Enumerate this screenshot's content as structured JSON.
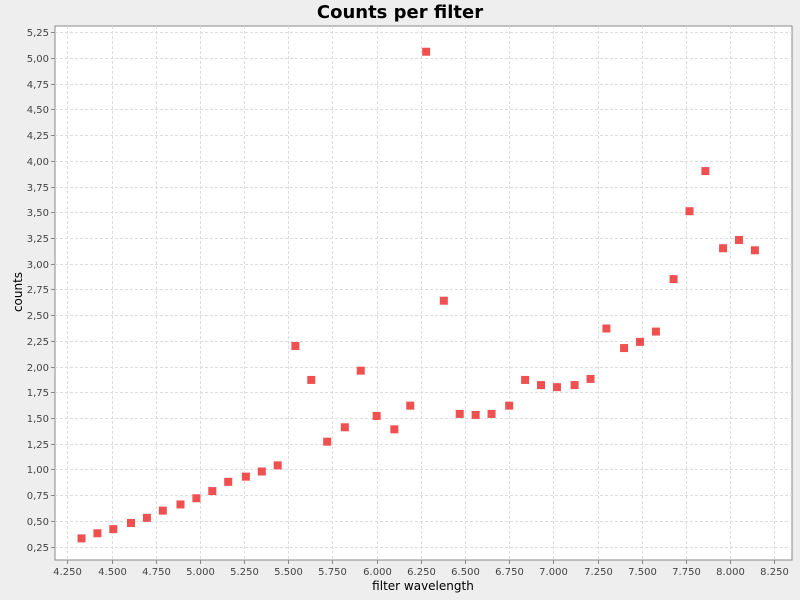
{
  "chart_data": {
    "type": "scatter",
    "title": "Counts per filter",
    "xlabel": "filter wavelength",
    "ylabel": "counts",
    "xlim": [
      4.18,
      8.35
    ],
    "ylim": [
      0.12,
      5.31
    ],
    "x_ticks": [
      4.25,
      4.5,
      4.75,
      5.0,
      5.25,
      5.5,
      5.75,
      6.0,
      6.25,
      6.5,
      6.75,
      7.0,
      7.25,
      7.5,
      7.75,
      8.0,
      8.25
    ],
    "x_tick_labels": [
      "4.250",
      "4.500",
      "4.750",
      "5.000",
      "5.250",
      "5.500",
      "5.750",
      "6.000",
      "6.250",
      "6.500",
      "6.750",
      "7.000",
      "7.250",
      "7.500",
      "7.750",
      "8.000",
      "8.250"
    ],
    "y_ticks": [
      0.25,
      0.5,
      0.75,
      1.0,
      1.25,
      1.5,
      1.75,
      2.0,
      2.25,
      2.5,
      2.75,
      3.0,
      3.25,
      3.5,
      3.75,
      4.0,
      4.25,
      4.5,
      4.75,
      5.0,
      5.25
    ],
    "y_tick_labels": [
      "0,25",
      "0,50",
      "0,75",
      "1,00",
      "1,25",
      "1,50",
      "1,75",
      "2,00",
      "2,25",
      "2,50",
      "2,75",
      "3,00",
      "3,25",
      "3,50",
      "3,75",
      "4,00",
      "4,25",
      "4,50",
      "4,75",
      "5,00",
      "5,25"
    ],
    "grid": true,
    "legend": "none",
    "marker": "square",
    "series": [
      {
        "color": "#f05050",
        "points": [
          [
            4.33,
            0.33
          ],
          [
            4.42,
            0.38
          ],
          [
            4.51,
            0.42
          ],
          [
            4.61,
            0.48
          ],
          [
            4.7,
            0.53
          ],
          [
            4.79,
            0.6
          ],
          [
            4.89,
            0.66
          ],
          [
            4.98,
            0.72
          ],
          [
            5.07,
            0.79
          ],
          [
            5.16,
            0.88
          ],
          [
            5.26,
            0.93
          ],
          [
            5.35,
            0.98
          ],
          [
            5.44,
            1.04
          ],
          [
            5.54,
            2.2
          ],
          [
            5.63,
            1.87
          ],
          [
            5.72,
            1.27
          ],
          [
            5.82,
            1.41
          ],
          [
            5.91,
            1.96
          ],
          [
            6.0,
            1.52
          ],
          [
            6.1,
            1.39
          ],
          [
            6.19,
            1.62
          ],
          [
            6.28,
            5.06
          ],
          [
            6.38,
            2.64
          ],
          [
            6.47,
            1.54
          ],
          [
            6.56,
            1.53
          ],
          [
            6.65,
            1.54
          ],
          [
            6.75,
            1.62
          ],
          [
            6.84,
            1.87
          ],
          [
            6.93,
            1.82
          ],
          [
            7.02,
            1.8
          ],
          [
            7.12,
            1.82
          ],
          [
            7.21,
            1.88
          ],
          [
            7.3,
            2.37
          ],
          [
            7.4,
            2.18
          ],
          [
            7.49,
            2.24
          ],
          [
            7.58,
            2.34
          ],
          [
            7.68,
            2.85
          ],
          [
            7.77,
            3.51
          ],
          [
            7.86,
            3.9
          ],
          [
            7.96,
            3.15
          ],
          [
            8.05,
            3.23
          ],
          [
            8.14,
            3.13
          ]
        ]
      }
    ]
  },
  "colors": {
    "background": "#eeeeee",
    "plot_background": "#ffffff",
    "grid": "#dddddd",
    "axis": "#888888"
  }
}
